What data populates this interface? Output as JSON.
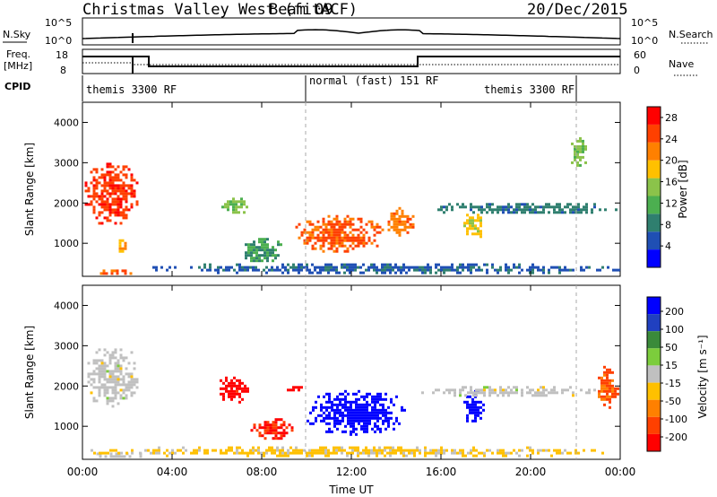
{
  "header": {
    "station": "Christmas Valley West (fitACF)",
    "beam": "Beam 09",
    "date": "20/Dec/2015"
  },
  "noise_panel": {
    "left_label": "N.Sky",
    "left_ticks": [
      "10^5",
      "10^0"
    ],
    "right_label": "N.Search",
    "right_ticks": [
      "10^5",
      "10^0"
    ]
  },
  "freq_panel": {
    "left_label_line1": "Freq.",
    "left_label_line2": "[MHz]",
    "left_ticks": [
      "18",
      "8"
    ],
    "right_label": "Nave",
    "right_ticks": [
      "60",
      "0"
    ]
  },
  "cpid_panel": {
    "label": "CPID",
    "segments": [
      {
        "label": "themis 3300 RF",
        "start_hour": 0.0,
        "end_hour": 10.0
      },
      {
        "label": "normal (fast) 151 RF",
        "start_hour": 10.0,
        "end_hour": 22.0
      },
      {
        "label": "themis 3300 RF",
        "start_hour": 22.0,
        "end_hour": 24.0
      }
    ]
  },
  "colors": {
    "power_scale": [
      "#0000ff",
      "#1f4fb4",
      "#2f7f6f",
      "#4caf50",
      "#8bc34a",
      "#ffc000",
      "#ff8000",
      "#ff4000",
      "#ff0000"
    ],
    "velocity_scale": [
      "#0000ff",
      "#2040c0",
      "#3a8a3a",
      "#7ccd3c",
      "#c0c0c0",
      "#ffc000",
      "#ff8000",
      "#ff4000",
      "#ff0000"
    ]
  },
  "chart_data": [
    {
      "type": "heatmap",
      "title": "",
      "xlabel": "",
      "ylabel": "Slant Range [km]",
      "xlim": [
        0,
        24
      ],
      "ylim": [
        180,
        4500
      ],
      "x_ticks": [],
      "y_ticks": [
        "1000",
        "2000",
        "3000",
        "4000"
      ],
      "colorbar": {
        "label": "Power [dB]",
        "ticks": [
          "4",
          "8",
          "12",
          "16",
          "20",
          "24",
          "28"
        ],
        "range": [
          0,
          30
        ]
      },
      "echo_regions": [
        {
          "t0": 0.1,
          "t1": 2.5,
          "r0": 1400,
          "r1": 3000,
          "value": 26
        },
        {
          "t0": 1.5,
          "t1": 2.0,
          "r0": 700,
          "r1": 1100,
          "value": 20
        },
        {
          "t0": 0.3,
          "t1": 2.5,
          "r0": 200,
          "r1": 350,
          "value": 24
        },
        {
          "t0": 6.2,
          "t1": 7.5,
          "r0": 1600,
          "r1": 2200,
          "value": 14
        },
        {
          "t0": 7.0,
          "t1": 9.0,
          "r0": 400,
          "r1": 1200,
          "value": 10
        },
        {
          "t0": 9.5,
          "t1": 13.5,
          "r0": 700,
          "r1": 1700,
          "value": 24
        },
        {
          "t0": 13.5,
          "t1": 15.0,
          "r0": 1100,
          "r1": 1900,
          "value": 22
        },
        {
          "t0": 17.0,
          "t1": 18.0,
          "r0": 1100,
          "r1": 1800,
          "value": 18
        },
        {
          "t0": 15.0,
          "t1": 24.0,
          "r0": 1700,
          "r1": 2000,
          "value": 8
        },
        {
          "t0": 21.8,
          "t1": 22.6,
          "r0": 2800,
          "r1": 3700,
          "value": 14
        },
        {
          "t0": 3.0,
          "t1": 24.0,
          "r0": 200,
          "r1": 500,
          "value": 6
        }
      ]
    },
    {
      "type": "heatmap",
      "title": "",
      "xlabel": "Time UT",
      "ylabel": "Slant Range [km]",
      "xlim": [
        0,
        24
      ],
      "ylim": [
        180,
        4500
      ],
      "x_ticks": [
        "00:00",
        "04:00",
        "08:00",
        "12:00",
        "16:00",
        "20:00",
        "00:00"
      ],
      "y_ticks": [
        "1000",
        "2000",
        "3000",
        "4000"
      ],
      "colorbar": {
        "label": "Velocity [m s⁻¹]",
        "ticks": [
          "200",
          "100",
          "50",
          "15",
          "-15",
          "-50",
          "-100",
          "-200"
        ],
        "range": [
          -250,
          250
        ]
      },
      "echo_regions": [
        {
          "t0": 0.1,
          "t1": 2.5,
          "r0": 1400,
          "r1": 3000,
          "value": 0
        },
        {
          "t0": 0.5,
          "t1": 3.0,
          "r0": 200,
          "r1": 350,
          "value": 0
        },
        {
          "t0": 6.0,
          "t1": 7.5,
          "r0": 1500,
          "r1": 2300,
          "value": -220
        },
        {
          "t0": 7.5,
          "t1": 9.5,
          "r0": 600,
          "r1": 1200,
          "value": -200
        },
        {
          "t0": 9.0,
          "t1": 10.0,
          "r0": 1800,
          "r1": 2000,
          "value": -220
        },
        {
          "t0": 10.0,
          "t1": 14.5,
          "r0": 700,
          "r1": 1900,
          "value": 230
        },
        {
          "t0": 17.0,
          "t1": 18.0,
          "r0": 1000,
          "r1": 1900,
          "value": 230
        },
        {
          "t0": 15.0,
          "t1": 23.0,
          "r0": 1700,
          "r1": 2000,
          "value": 0
        },
        {
          "t0": 23.0,
          "t1": 24.0,
          "r0": 1400,
          "r1": 2500,
          "value": -150
        },
        {
          "t0": 0.0,
          "t1": 24.0,
          "r0": 200,
          "r1": 500,
          "value": -40
        }
      ]
    }
  ]
}
